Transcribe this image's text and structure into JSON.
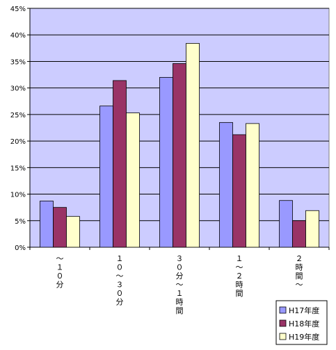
{
  "chart_data": {
    "type": "bar",
    "title": "",
    "xlabel": "",
    "ylabel": "",
    "categories": [
      "～１０分",
      "１０～３０分",
      "３０分～１時間",
      "１～２時間",
      "２時間～"
    ],
    "series": [
      {
        "name": "H17年度",
        "values": [
          8.7,
          26.6,
          32.0,
          23.5,
          8.8
        ],
        "color": "#9999ff"
      },
      {
        "name": "H18年度",
        "values": [
          7.5,
          31.4,
          34.6,
          21.2,
          5.0
        ],
        "color": "#993366"
      },
      {
        "name": "H19年度",
        "values": [
          5.8,
          25.3,
          38.4,
          23.3,
          6.9
        ],
        "color": "#ffffcc"
      }
    ],
    "ylim": [
      0,
      45
    ],
    "ytick_step": 5,
    "ytick_labels": [
      "0%",
      "5%",
      "10%",
      "15%",
      "20%",
      "25%",
      "30%",
      "35%",
      "40%",
      "45%"
    ],
    "grid": true,
    "plot_background": "#ccccff",
    "legend": {
      "position": "bottom-right"
    }
  }
}
